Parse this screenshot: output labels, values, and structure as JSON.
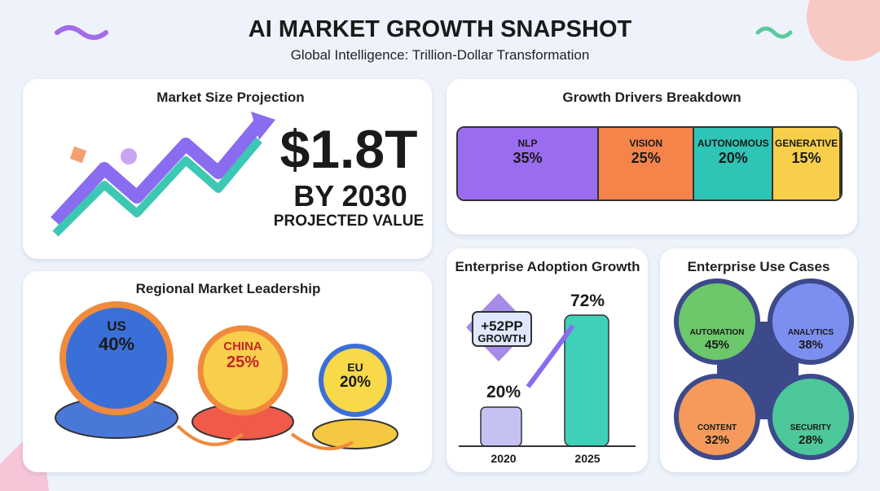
{
  "header": {
    "title": "AI MARKET GROWTH SNAPSHOT",
    "subtitle": "Global Intelligence: Trillion-Dollar Transformation"
  },
  "market_size": {
    "title": "Market Size Projection",
    "value": "$1.8T",
    "year_line": "BY 2030",
    "caption": "PROJECTED VALUE"
  },
  "growth_drivers": {
    "title": "Growth Drivers Breakdown",
    "segments": [
      {
        "label": "NLP",
        "value": "35%"
      },
      {
        "label": "VISION",
        "value": "25%"
      },
      {
        "label": "AUTONOMOUS",
        "value": "20%"
      },
      {
        "label": "GENERATIVE",
        "value": "15%"
      }
    ]
  },
  "regional": {
    "title": "Regional Market Leadership",
    "regions": [
      {
        "label": "US",
        "value": "40%"
      },
      {
        "label": "CHINA",
        "value": "25%"
      },
      {
        "label": "EU",
        "value": "20%"
      }
    ]
  },
  "adoption": {
    "title": "Enterprise Adoption Growth",
    "badge": "+52PP",
    "badge_caption": "GROWTH",
    "bars": [
      {
        "year": "2020",
        "value": "20%"
      },
      {
        "year": "2025",
        "value": "72%"
      }
    ]
  },
  "use_cases": {
    "title": "Enterprise Use Cases",
    "items": [
      {
        "label": "AUTOMATION",
        "value": "45%"
      },
      {
        "label": "ANALYTICS",
        "value": "38%"
      },
      {
        "label": "CONTENT",
        "value": "32%"
      },
      {
        "label": "SECURITY",
        "value": "28%"
      }
    ]
  }
}
